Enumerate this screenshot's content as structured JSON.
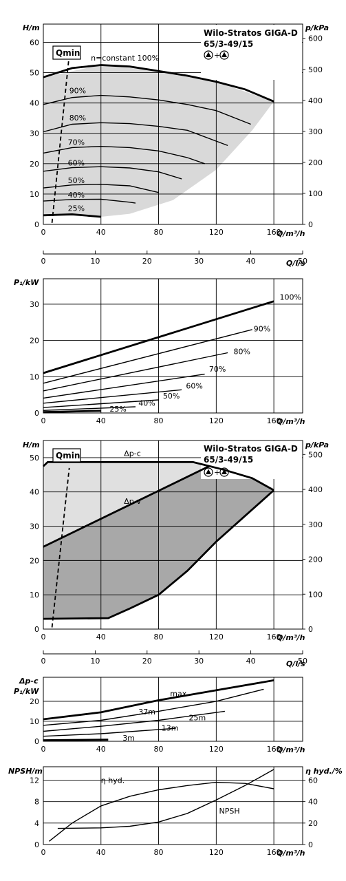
{
  "chart_data": [
    {
      "id": "h1",
      "type": "line",
      "title": "Wilo-Stratos GIGA-D",
      "subtitle": "65/3-49/15",
      "legend_text": "+",
      "xlabel": "Q/m³/h",
      "ylabel": "H/m",
      "y2label": "p/kPa",
      "xlim": [
        0,
        180
      ],
      "ylim": [
        0,
        66
      ],
      "y2lim": [
        0,
        646
      ],
      "xticks": [
        "0",
        "40",
        "80",
        "120",
        "160"
      ],
      "yticks": [
        "0",
        "10",
        "20",
        "30",
        "40",
        "50",
        "60"
      ],
      "y2ticks": [
        "0",
        "100",
        "200",
        "300",
        "400",
        "500",
        "600"
      ],
      "qmin_label": "Qmin",
      "qmin_line": [
        [
          6,
          0.5
        ],
        [
          18,
          56
        ]
      ],
      "envelope": [
        [
          0,
          48.5
        ],
        [
          40,
          52.5
        ],
        [
          80,
          50.5
        ],
        [
          120,
          47
        ],
        [
          160,
          40.5
        ],
        [
          145,
          31
        ],
        [
          120,
          18
        ],
        [
          90,
          8
        ],
        [
          60,
          3.5
        ],
        [
          40,
          2.5
        ],
        [
          0,
          3
        ]
      ],
      "series": [
        {
          "name": "n=constant 100%",
          "thick": true,
          "x": [
            0,
            20,
            40,
            60,
            80,
            100,
            120,
            140,
            160
          ],
          "y": [
            48.5,
            51.5,
            52.5,
            52,
            50.5,
            49,
            47,
            44.5,
            40.5
          ]
        },
        {
          "name": "90%",
          "thick": false,
          "x": [
            0,
            20,
            40,
            60,
            80,
            100,
            120,
            144
          ],
          "y": [
            39.5,
            41.8,
            42.5,
            42,
            41,
            39.5,
            37.5,
            33
          ]
        },
        {
          "name": "80%",
          "thick": false,
          "x": [
            0,
            20,
            40,
            60,
            80,
            100,
            128
          ],
          "y": [
            30.5,
            33,
            33.5,
            33.2,
            32.3,
            31,
            26
          ]
        },
        {
          "name": "70%",
          "thick": false,
          "x": [
            0,
            20,
            40,
            60,
            80,
            100,
            112
          ],
          "y": [
            23.5,
            25.3,
            25.7,
            25.3,
            24.2,
            22,
            20
          ]
        },
        {
          "name": "60%",
          "thick": false,
          "x": [
            0,
            20,
            40,
            60,
            80,
            96
          ],
          "y": [
            17.5,
            18.7,
            19,
            18.6,
            17.3,
            15
          ]
        },
        {
          "name": "50%",
          "thick": false,
          "x": [
            0,
            20,
            40,
            60,
            80
          ],
          "y": [
            12,
            13,
            13.2,
            12.7,
            10.5
          ]
        },
        {
          "name": "40%",
          "thick": false,
          "x": [
            0,
            20,
            40,
            60,
            64
          ],
          "y": [
            7.7,
            8.2,
            8.3,
            7.3,
            7
          ]
        },
        {
          "name": "25%",
          "thick": true,
          "x": [
            0,
            20,
            40
          ],
          "y": [
            3,
            3.3,
            2.5
          ]
        }
      ],
      "labels": [
        {
          "text": "n=constant 100%",
          "x": 33,
          "y": 54
        },
        {
          "text": "90%",
          "x": 18,
          "y": 43.2
        },
        {
          "text": "80%",
          "x": 18,
          "y": 34.2
        },
        {
          "text": "70%",
          "x": 17,
          "y": 26.2
        },
        {
          "text": "60%",
          "x": 17,
          "y": 19.4
        },
        {
          "text": "50%",
          "x": 17,
          "y": 13.6
        },
        {
          "text": "40%",
          "x": 17,
          "y": 8.8
        },
        {
          "text": "25%",
          "x": 17,
          "y": 4.4
        }
      ]
    },
    {
      "id": "ql1",
      "type": "axis",
      "xlabel": "Q/l/s",
      "ticks": [
        0,
        10,
        20,
        30,
        40,
        50
      ],
      "tick_labels": [
        "0",
        "10",
        "20",
        "30",
        "40",
        "50"
      ]
    },
    {
      "id": "p1",
      "type": "line",
      "xlabel": "Q/m³/h",
      "ylabel": "P₁/kW",
      "xlim": [
        0,
        180
      ],
      "ylim": [
        0,
        37
      ],
      "xticks": [
        "0",
        "40",
        "80",
        "120",
        "160"
      ],
      "yticks": [
        "0",
        "10",
        "20",
        "30"
      ],
      "series": [
        {
          "name": "100%",
          "thick": true,
          "x": [
            0,
            160
          ],
          "y": [
            11,
            30.8
          ]
        },
        {
          "name": "90%",
          "thick": false,
          "x": [
            0,
            145
          ],
          "y": [
            8.2,
            23
          ]
        },
        {
          "name": "80%",
          "thick": false,
          "x": [
            0,
            128
          ],
          "y": [
            6.1,
            16.6
          ]
        },
        {
          "name": "70%",
          "thick": false,
          "x": [
            0,
            112
          ],
          "y": [
            4.1,
            10.7
          ]
        },
        {
          "name": "60%",
          "thick": false,
          "x": [
            0,
            96
          ],
          "y": [
            2.7,
            6.4
          ]
        },
        {
          "name": "50%",
          "thick": false,
          "x": [
            0,
            80
          ],
          "y": [
            1.5,
            3.6
          ]
        },
        {
          "name": "40%",
          "thick": false,
          "x": [
            0,
            64
          ],
          "y": [
            0.7,
            1.7
          ]
        },
        {
          "name": "25%",
          "thick": true,
          "x": [
            0,
            40
          ],
          "y": [
            0.25,
            0.6
          ]
        }
      ],
      "labels": [
        {
          "text": "100%",
          "x": 164,
          "y": 31.2
        },
        {
          "text": "90%",
          "x": 146,
          "y": 22.5
        },
        {
          "text": "80%",
          "x": 132,
          "y": 16.2
        },
        {
          "text": "70%",
          "x": 115,
          "y": 11.4
        },
        {
          "text": "60%",
          "x": 99,
          "y": 6.7
        },
        {
          "text": "50%",
          "x": 83,
          "y": 4
        },
        {
          "text": "40%",
          "x": 66,
          "y": 2
        },
        {
          "text": "25%",
          "x": 46,
          "y": 0.4
        }
      ]
    },
    {
      "id": "h2",
      "type": "area",
      "title": "Wilo-Stratos GIGA-D",
      "subtitle": "65/3-49/15",
      "legend_text": "+",
      "xlabel": "Q/m³/h",
      "ylabel": "H/m",
      "y2label": "p/kPa",
      "xlim": [
        0,
        180
      ],
      "ylim": [
        0,
        55
      ],
      "y2lim": [
        0,
        540
      ],
      "xticks": [
        "0",
        "40",
        "80",
        "120",
        "160"
      ],
      "yticks": [
        "0",
        "10",
        "20",
        "30",
        "40",
        "50"
      ],
      "y2ticks": [
        "0",
        "100",
        "200",
        "300",
        "400",
        "500"
      ],
      "qmin_label": "Qmin",
      "qmin_line": [
        [
          6,
          0.5
        ],
        [
          18,
          47
        ]
      ],
      "dpc_label": "Δp-c",
      "dpv_label": "Δp-v",
      "dpc_line": [
        [
          0,
          47.5
        ],
        [
          3,
          48.7
        ],
        [
          104,
          48.7
        ],
        [
          125,
          46.5
        ],
        [
          145,
          44
        ],
        [
          160,
          40.5
        ]
      ],
      "dpv_line": [
        [
          0,
          24
        ],
        [
          115,
          47.5
        ]
      ],
      "min_curve": [
        [
          0,
          3
        ],
        [
          45,
          3.2
        ],
        [
          60,
          6
        ],
        [
          80,
          10
        ],
        [
          100,
          17
        ],
        [
          120,
          25.5
        ],
        [
          140,
          33
        ],
        [
          160,
          40.5
        ]
      ],
      "labels": [
        {
          "text": "Δp-c",
          "x": 56,
          "y": 50.5
        },
        {
          "text": "Δp-v",
          "x": 56,
          "y": 36.5
        }
      ]
    },
    {
      "id": "ql2",
      "type": "axis",
      "xlabel": "Q/l/s",
      "ticks": [
        0,
        10,
        20,
        30,
        40,
        50
      ],
      "tick_labels": [
        "0",
        "10",
        "20",
        "30",
        "40",
        "50"
      ]
    },
    {
      "id": "p2",
      "type": "line",
      "xlabel": "Q/m³/h",
      "ylabel": "P₁/kW",
      "ylabel_top": "Δp-c",
      "xlim": [
        0,
        180
      ],
      "ylim": [
        0,
        32
      ],
      "xticks": [
        "0",
        "40",
        "80",
        "120",
        "160"
      ],
      "yticks": [
        "0",
        "10",
        "20"
      ],
      "series": [
        {
          "name": "max.",
          "thick": true,
          "x": [
            0,
            40,
            80,
            120,
            160
          ],
          "y": [
            11,
            14.5,
            20.5,
            25.5,
            30.5
          ]
        },
        {
          "name": "37m",
          "thick": false,
          "x": [
            0,
            40,
            80,
            120,
            153
          ],
          "y": [
            8,
            10.5,
            15,
            20,
            26
          ]
        },
        {
          "name": "25m",
          "thick": false,
          "x": [
            0,
            40,
            80,
            126
          ],
          "y": [
            5,
            7.5,
            10.5,
            15
          ]
        },
        {
          "name": "13m",
          "thick": false,
          "x": [
            0,
            40,
            92
          ],
          "y": [
            2.5,
            3.8,
            6.5
          ]
        },
        {
          "name": "3m",
          "thick": true,
          "x": [
            0,
            45
          ],
          "y": [
            0.5,
            0.8
          ]
        }
      ],
      "labels": [
        {
          "text": "max.",
          "x": 88,
          "y": 22.5
        },
        {
          "text": "37m",
          "x": 66,
          "y": 13.5
        },
        {
          "text": "25m",
          "x": 101,
          "y": 10.5
        },
        {
          "text": "13m",
          "x": 82,
          "y": 5.3
        },
        {
          "text": "3m",
          "x": 55,
          "y": 0.3
        }
      ]
    },
    {
      "id": "npsh",
      "type": "line",
      "xlabel": "Q/m³/h",
      "ylabel": "NPSH/m",
      "y2label": "η hyd./%",
      "xlim": [
        0,
        180
      ],
      "ylim": [
        0,
        14.5
      ],
      "y2lim": [
        0,
        72.5
      ],
      "xticks": [
        "0",
        "40",
        "80",
        "120",
        "160"
      ],
      "yticks": [
        "0",
        "4",
        "8",
        "12"
      ],
      "y2ticks": [
        "0",
        "20",
        "40",
        "60"
      ],
      "series": [
        {
          "name": "η hyd.",
          "axis": "right",
          "x": [
            4,
            20,
            40,
            60,
            80,
            100,
            120,
            140,
            160
          ],
          "y": [
            3,
            20,
            36,
            45,
            51,
            55,
            58,
            57,
            52
          ]
        },
        {
          "name": "NPSH",
          "axis": "left",
          "x": [
            10,
            40,
            60,
            80,
            100,
            120,
            140,
            160
          ],
          "y": [
            3,
            3.1,
            3.4,
            4.2,
            5.8,
            8.3,
            11,
            14
          ]
        }
      ],
      "labels": [
        {
          "text": "η hyd.",
          "x": 40,
          "y": 11.5
        },
        {
          "text": "NPSH",
          "x": 122,
          "y": 5.8
        }
      ]
    }
  ]
}
